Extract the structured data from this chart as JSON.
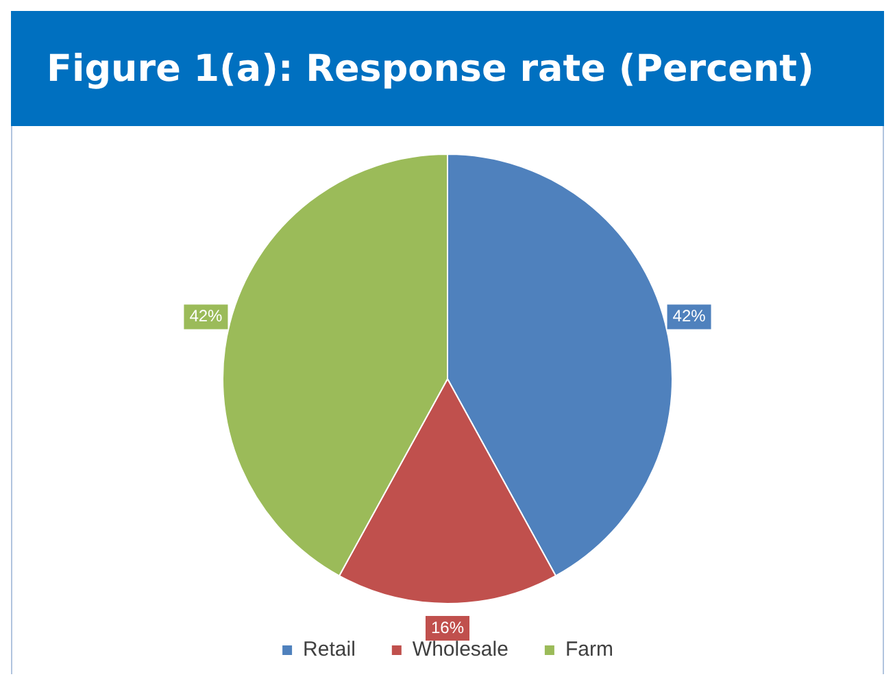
{
  "chart_data": {
    "type": "pie",
    "title": "Figure 1(a): Response rate (Percent)",
    "categories": [
      "Retail",
      "Wholesale",
      "Farm"
    ],
    "values": [
      42,
      16,
      42
    ],
    "colors": [
      "#4f81bd",
      "#c0504d",
      "#9bbb59"
    ],
    "value_labels": [
      "42%",
      "16%",
      "42%"
    ],
    "legend": "bottom"
  }
}
